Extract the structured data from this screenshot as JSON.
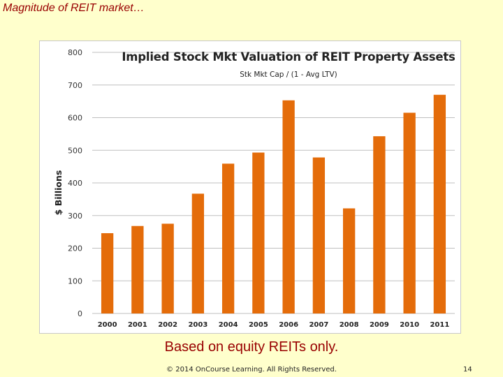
{
  "slide": {
    "title": "Magnitude of REIT market…",
    "footnote": "Based on equity REITs only.",
    "copyright": "© 2014 OnCourse Learning. All Rights Reserved.",
    "page_number": "14"
  },
  "chart_data": {
    "type": "bar",
    "title": "Implied Stock Mkt Valuation of REIT Property Assets",
    "subtitle": "Stk Mkt Cap / (1 - Avg LTV)",
    "xlabel": "",
    "ylabel": "$ Billions",
    "ylim": [
      0,
      800
    ],
    "yticks": [
      0,
      100,
      200,
      300,
      400,
      500,
      600,
      700,
      800
    ],
    "categories": [
      "2000",
      "2001",
      "2002",
      "2003",
      "2004",
      "2005",
      "2006",
      "2007",
      "2008",
      "2009",
      "2010",
      "2011"
    ],
    "values": [
      246,
      268,
      275,
      367,
      459,
      493,
      653,
      478,
      322,
      543,
      615,
      670
    ],
    "grid": true,
    "legend": "none",
    "bar_color": "#e46c0a",
    "grid_color": "#bfbfbf"
  }
}
